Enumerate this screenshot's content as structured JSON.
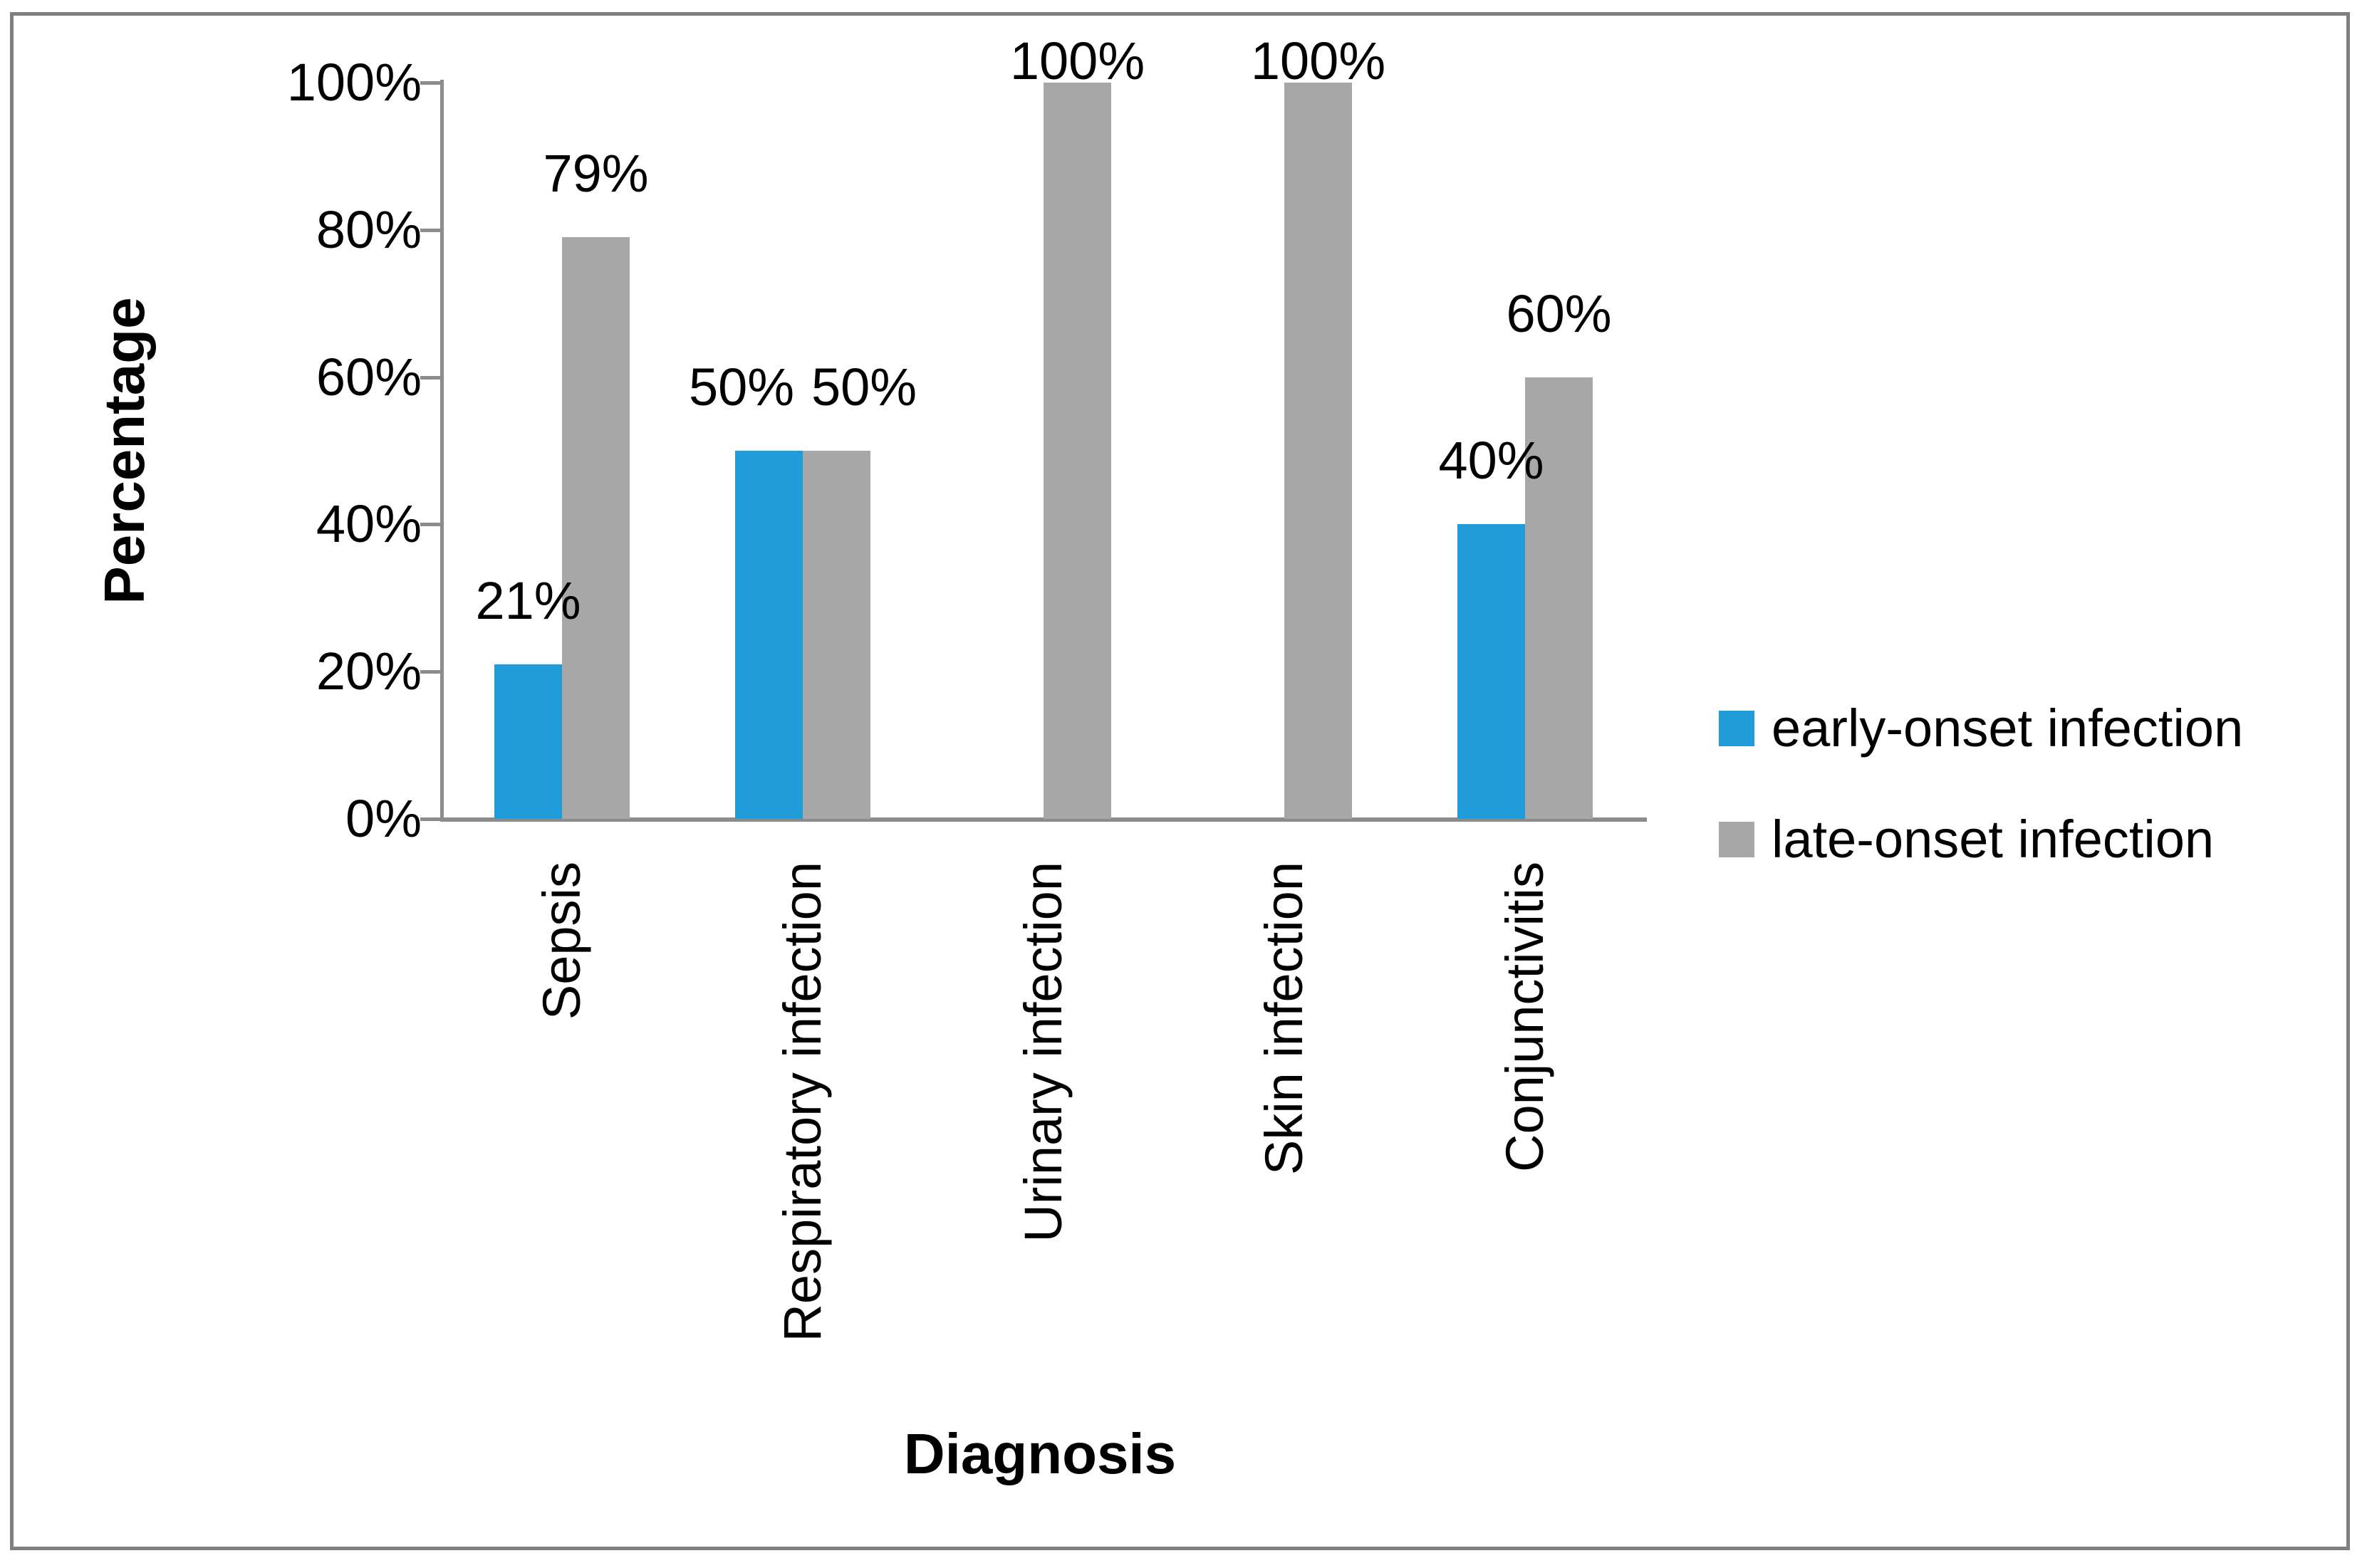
{
  "chart_data": {
    "type": "bar",
    "title": "",
    "categories": [
      "Sepsis",
      "Respiratory infection",
      "Urinary infection",
      "Skin infection",
      "Conjunctivitis"
    ],
    "series": [
      {
        "name": "early-onset infection",
        "color": "#209CD8",
        "values": [
          21,
          50,
          0,
          0,
          40
        ]
      },
      {
        "name": "late-onset infection",
        "color": "#A7A7A7",
        "values": [
          79,
          50,
          100,
          100,
          60
        ]
      }
    ],
    "value_suffix": "%",
    "data_labels": [
      "21%",
      "79%",
      "50%",
      "50%",
      "100%",
      "100%",
      "40%",
      "60%"
    ],
    "xlabel": "Diagnosis",
    "ylabel": "Percentage",
    "ylim": [
      0,
      100
    ],
    "ytick_step": 20,
    "ytick_labels": [
      "0%",
      "20%",
      "40%",
      "60%",
      "80%",
      "100%"
    ],
    "grid": false,
    "legend_position": "right",
    "hidden_bars_note": "bars with value 0 are not drawn"
  },
  "colors": {
    "early_onset": "#209CD8",
    "late_onset": "#A7A7A7",
    "axis": "#8C8C8C",
    "frame_border": "#7F7F7F",
    "text": "#000000",
    "background": "#FFFFFF"
  }
}
